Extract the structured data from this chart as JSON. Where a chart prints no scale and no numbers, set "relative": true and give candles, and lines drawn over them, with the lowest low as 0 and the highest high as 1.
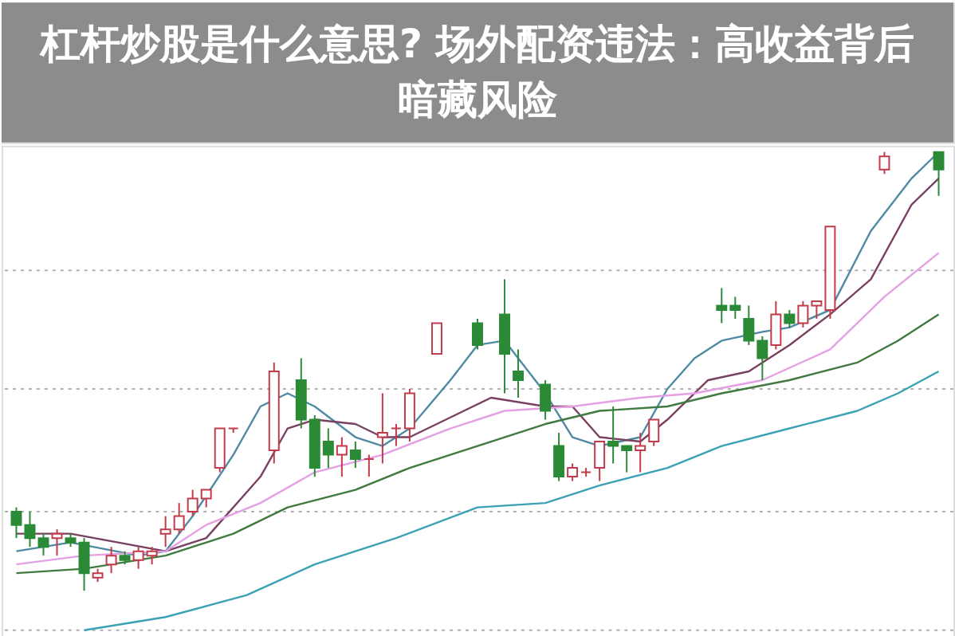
{
  "chart_data": {
    "type": "candlestick",
    "relative": true,
    "title": "杠杆炒股是什么意思? 场外配资违法：高收益背后暗藏风险",
    "categories": [
      null,
      null,
      null,
      null,
      null,
      null,
      null,
      null,
      null,
      null,
      null,
      null,
      null,
      null,
      null,
      null,
      null,
      null,
      null,
      null,
      null,
      null,
      null,
      null,
      null,
      null,
      null,
      null,
      null,
      null,
      null,
      null,
      null,
      null,
      null,
      null,
      null,
      null,
      null,
      null,
      null,
      null,
      null,
      null,
      null,
      null,
      null,
      null,
      null,
      null,
      null,
      null,
      null,
      null,
      null,
      null,
      null,
      null,
      null,
      null,
      null,
      null,
      null,
      null,
      null,
      null,
      null,
      null,
      null
    ],
    "ohlc": [
      [
        0.18,
        0.19,
        0.12,
        0.15
      ],
      [
        0.15,
        0.18,
        0.1,
        0.12
      ],
      [
        0.12,
        0.13,
        0.08,
        0.1
      ],
      [
        0.12,
        0.14,
        0.08,
        0.13
      ],
      [
        0.12,
        0.13,
        0.1,
        0.11
      ],
      [
        0.11,
        0.12,
        0.0,
        0.04
      ],
      [
        0.03,
        0.05,
        0.02,
        0.04
      ],
      [
        0.06,
        0.1,
        0.04,
        0.08
      ],
      [
        0.08,
        0.09,
        0.06,
        0.07
      ],
      [
        0.07,
        0.1,
        0.05,
        0.09
      ],
      [
        0.08,
        0.1,
        0.06,
        0.09
      ],
      [
        0.13,
        0.17,
        0.1,
        0.14
      ],
      [
        0.14,
        0.2,
        0.13,
        0.17
      ],
      [
        0.18,
        0.23,
        0.17,
        0.21
      ],
      [
        0.21,
        0.23,
        0.19,
        0.23
      ],
      [
        0.28,
        0.37,
        0.27,
        0.37
      ],
      [
        0.37,
        0.37,
        0.36,
        0.37
      ],
      null,
      null,
      [
        0.32,
        0.52,
        0.29,
        0.5
      ],
      null,
      [
        0.48,
        0.53,
        0.37,
        0.39
      ],
      [
        0.39,
        0.4,
        0.26,
        0.28
      ],
      [
        0.34,
        0.37,
        0.28,
        0.31
      ],
      [
        0.31,
        0.35,
        0.26,
        0.33
      ],
      [
        0.32,
        0.34,
        0.28,
        0.3
      ],
      [
        0.3,
        0.31,
        0.26,
        0.3
      ],
      [
        0.35,
        0.45,
        0.29,
        0.36
      ],
      [
        0.37,
        0.38,
        0.33,
        0.37
      ],
      [
        0.37,
        0.46,
        0.34,
        0.45
      ],
      null,
      [
        0.54,
        0.61,
        0.54,
        0.61
      ],
      null,
      null,
      [
        0.61,
        0.62,
        0.55,
        0.56
      ],
      null,
      [
        0.63,
        0.71,
        0.45,
        0.54
      ],
      [
        0.5,
        0.55,
        0.44,
        0.48
      ],
      null,
      [
        0.47,
        0.48,
        0.39,
        0.41
      ],
      [
        0.33,
        0.36,
        0.25,
        0.26
      ],
      [
        0.26,
        0.29,
        0.25,
        0.28
      ],
      [
        0.27,
        0.28,
        0.26,
        0.27
      ],
      [
        0.28,
        0.34,
        0.25,
        0.34
      ],
      [
        0.34,
        0.42,
        0.29,
        0.33
      ],
      [
        0.33,
        0.33,
        0.27,
        0.32
      ],
      [
        0.32,
        0.36,
        0.27,
        0.33
      ],
      [
        0.34,
        0.39,
        0.33,
        0.39
      ],
      null,
      null,
      null,
      null,
      [
        0.65,
        0.69,
        0.61,
        0.64
      ],
      [
        0.65,
        0.67,
        0.62,
        0.64
      ],
      [
        0.62,
        0.65,
        0.56,
        0.57
      ],
      [
        0.57,
        0.58,
        0.48,
        0.53
      ],
      [
        0.56,
        0.66,
        0.55,
        0.63
      ],
      [
        0.63,
        0.64,
        0.6,
        0.61
      ],
      [
        0.61,
        0.66,
        0.6,
        0.65
      ],
      [
        0.65,
        0.66,
        0.62,
        0.66
      ],
      [
        0.64,
        0.83,
        0.62,
        0.83
      ],
      null,
      null,
      null,
      [
        0.96,
        1.0,
        0.95,
        0.99
      ],
      null,
      null,
      null,
      [
        1.0,
        1.0,
        0.9,
        0.96
      ]
    ],
    "series": [
      {
        "type": "line",
        "color": "#4f8aa3",
        "values": [
          0.09,
          null,
          null,
          null,
          0.11,
          null,
          null,
          null,
          null,
          0.08,
          null,
          0.09,
          null,
          0.17,
          null,
          null,
          0.31,
          null,
          0.42,
          null,
          0.45,
          null,
          0.42,
          null,
          null,
          0.35,
          null,
          0.33,
          null,
          0.37,
          null,
          null,
          0.48,
          null,
          0.56,
          null,
          0.57,
          null,
          null,
          0.45,
          null,
          0.35,
          null,
          0.33,
          null,
          null,
          0.35,
          null,
          0.46,
          null,
          0.53,
          null,
          0.57,
          null,
          null,
          0.59,
          null,
          0.6,
          null,
          null,
          0.64,
          null,
          null,
          0.82,
          null,
          null,
          0.94,
          null,
          1.0
        ]
      },
      {
        "type": "line",
        "color": "#7a4062",
        "values": [
          0.13,
          null,
          null,
          null,
          0.13,
          null,
          null,
          null,
          null,
          null,
          null,
          0.09,
          null,
          null,
          0.12,
          null,
          null,
          null,
          0.26,
          null,
          0.37,
          null,
          0.39,
          null,
          null,
          0.38,
          null,
          0.35,
          null,
          0.35,
          null,
          null,
          null,
          0.41,
          null,
          0.44,
          null,
          null,
          null,
          0.42,
          null,
          0.42,
          null,
          0.35,
          null,
          null,
          0.34,
          null,
          0.39,
          null,
          null,
          0.48,
          null,
          null,
          0.5,
          null,
          null,
          0.56,
          null,
          null,
          0.63,
          null,
          null,
          0.71,
          null,
          null,
          0.88,
          null,
          0.94
        ]
      },
      {
        "type": "line",
        "color": "#e4a0e4",
        "values": [
          0.06,
          null,
          null,
          null,
          null,
          0.08,
          null,
          null,
          null,
          null,
          null,
          0.09,
          null,
          null,
          0.15,
          null,
          null,
          null,
          0.2,
          null,
          null,
          null,
          0.27,
          null,
          null,
          null,
          null,
          0.31,
          null,
          null,
          null,
          null,
          0.37,
          null,
          null,
          null,
          0.41,
          null,
          null,
          null,
          null,
          0.42,
          null,
          null,
          null,
          null,
          0.44,
          null,
          null,
          null,
          0.45,
          null,
          null,
          null,
          null,
          0.48,
          null,
          null,
          null,
          null,
          0.55,
          null,
          null,
          null,
          0.67,
          null,
          null,
          null,
          0.77
        ]
      },
      {
        "type": "line",
        "color": "#3f7a3f",
        "values": [
          0.04,
          null,
          null,
          null,
          null,
          0.05,
          null,
          null,
          null,
          null,
          null,
          0.08,
          null,
          null,
          null,
          null,
          0.13,
          null,
          null,
          null,
          0.19,
          null,
          null,
          null,
          null,
          0.23,
          null,
          null,
          null,
          0.28,
          null,
          null,
          null,
          null,
          0.33,
          null,
          null,
          null,
          null,
          0.38,
          null,
          null,
          null,
          0.41,
          null,
          null,
          null,
          null,
          0.42,
          null,
          null,
          null,
          0.45,
          null,
          null,
          null,
          null,
          0.48,
          null,
          null,
          null,
          null,
          0.52,
          null,
          null,
          0.57,
          null,
          null,
          0.63
        ]
      },
      {
        "type": "line",
        "color": "#3aa2b4",
        "values": [
          null,
          null,
          null,
          null,
          null,
          -0.09,
          null,
          null,
          null,
          null,
          null,
          -0.06,
          null,
          null,
          null,
          null,
          null,
          -0.01,
          null,
          null,
          null,
          null,
          0.06,
          null,
          null,
          null,
          null,
          null,
          0.12,
          null,
          null,
          null,
          null,
          null,
          0.19,
          null,
          null,
          null,
          null,
          0.2,
          null,
          null,
          null,
          0.24,
          null,
          null,
          null,
          null,
          0.28,
          null,
          null,
          null,
          0.33,
          null,
          null,
          null,
          null,
          0.37,
          null,
          null,
          null,
          null,
          0.41,
          null,
          null,
          0.45,
          null,
          null,
          0.5
        ]
      }
    ],
    "ref_lines": [
      {
        "axis": "y",
        "value": 0.73,
        "color": "#b0b0b0",
        "line_style": "dotted"
      },
      {
        "axis": "y",
        "value": 0.46,
        "color": "#b0b0b0",
        "line_style": "dotted"
      },
      {
        "axis": "y",
        "value": 0.18,
        "color": "#b0b0b0",
        "line_style": "dotted"
      },
      {
        "axis": "y",
        "value": -0.09,
        "color": "#b0b0b0",
        "line_style": "dotted"
      }
    ]
  }
}
